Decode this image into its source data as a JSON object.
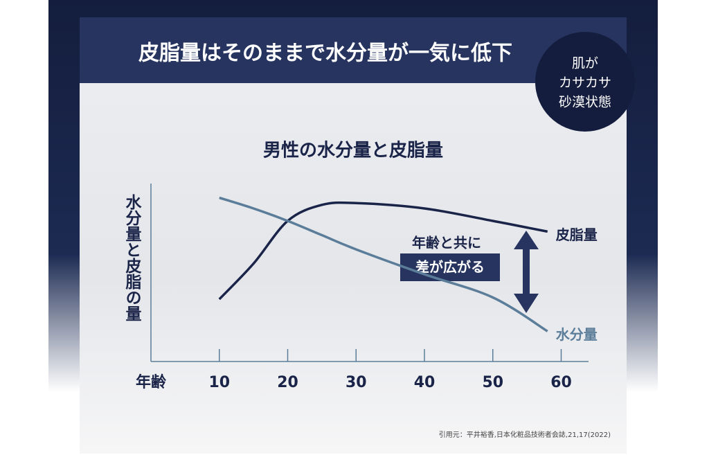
{
  "header": {
    "title": "皮脂量はそのままで水分量が一気に低下"
  },
  "badge": {
    "lines": [
      "肌が",
      "カサカサ",
      "砂漠状態"
    ]
  },
  "citation": "引用元：平井裕香,日本化粧品技術者会誌,21,17(2022)",
  "chart_data": {
    "type": "line",
    "title": "男性の水分量と皮脂量",
    "y_label": "水分量と皮脂の量",
    "x_label": "年齢",
    "x": [
      10,
      15,
      20,
      25,
      30,
      40,
      50,
      58
    ],
    "xlim": [
      0,
      64
    ],
    "xticks": [
      10,
      20,
      30,
      40,
      50,
      60
    ],
    "ylim": [
      0,
      100
    ],
    "series": [
      {
        "name": "皮脂量",
        "color": "#1a2348",
        "values": [
          35,
          55,
          79,
          88,
          89,
          86,
          79,
          73
        ]
      },
      {
        "name": "水分量",
        "color": "#5b7d99",
        "values": [
          92,
          86,
          79,
          71,
          63,
          49,
          36,
          17
        ]
      }
    ],
    "annotations": [
      "年齢と共に",
      "差が広がる"
    ]
  }
}
